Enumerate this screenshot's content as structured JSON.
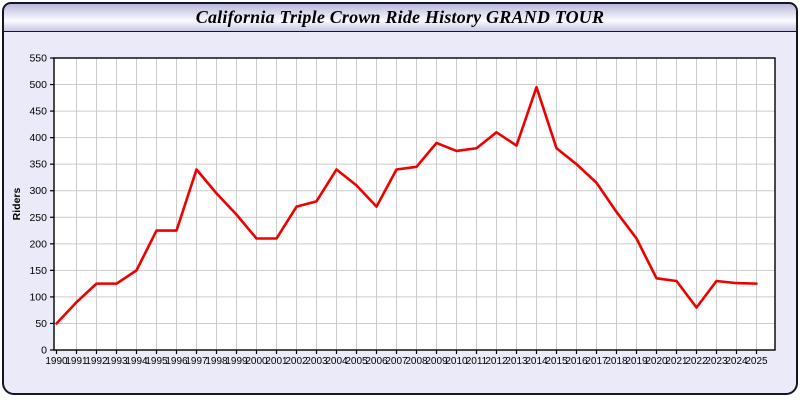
{
  "window": {
    "title": "California Triple Crown Ride History GRAND TOUR"
  },
  "colors": {
    "panel_bg": "#eaeaf8",
    "plot_bg": "#ffffff",
    "grid": "#cccccc",
    "axis": "#000000",
    "line": "#ee0000",
    "label_text": "#000000"
  },
  "chart_data": {
    "type": "line",
    "title": "California Triple Crown Ride History GRAND TOUR",
    "xlabel": "",
    "ylabel": "Riders",
    "x": [
      1990,
      1991,
      1992,
      1993,
      1994,
      1995,
      1996,
      1997,
      1998,
      1999,
      2000,
      2001,
      2002,
      2003,
      2004,
      2005,
      2006,
      2007,
      2008,
      2009,
      2010,
      2011,
      2012,
      2013,
      2014,
      2015,
      2016,
      2017,
      2018,
      2019,
      2020,
      2021,
      2022,
      2023,
      2024,
      2025
    ],
    "values": [
      50,
      90,
      125,
      125,
      150,
      225,
      225,
      340,
      295,
      255,
      210,
      210,
      270,
      280,
      340,
      310,
      270,
      340,
      345,
      390,
      375,
      380,
      410,
      385,
      495,
      380,
      350,
      315,
      260,
      210,
      135,
      130,
      80,
      130,
      126,
      125
    ],
    "ylim": [
      0,
      550
    ],
    "yticks": [
      0,
      50,
      100,
      150,
      200,
      250,
      300,
      350,
      400,
      450,
      500,
      550
    ],
    "grid": true,
    "legend": "none",
    "line_color": "#ee0000"
  }
}
